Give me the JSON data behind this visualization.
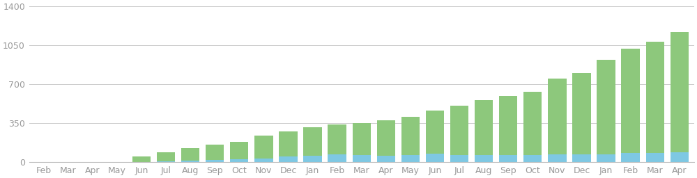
{
  "categories": [
    "Feb",
    "Mar",
    "Apr",
    "May",
    "Jun",
    "Jul",
    "Aug",
    "Sep",
    "Oct",
    "Nov",
    "Dec",
    "Jan",
    "Feb",
    "Mar",
    "Apr",
    "May",
    "Jun",
    "Jul",
    "Aug",
    "Sep",
    "Oct",
    "Nov",
    "Dec",
    "Jan",
    "Feb",
    "Mar",
    "Apr"
  ],
  "green_values": [
    1,
    1,
    2,
    3,
    48,
    82,
    110,
    140,
    160,
    205,
    225,
    255,
    270,
    285,
    315,
    345,
    390,
    445,
    490,
    530,
    570,
    680,
    730,
    850,
    940,
    1000,
    1080
  ],
  "blue_values": [
    0,
    0,
    0,
    0,
    4,
    10,
    15,
    20,
    25,
    35,
    50,
    60,
    70,
    65,
    60,
    65,
    75,
    65,
    65,
    65,
    65,
    70,
    70,
    70,
    80,
    80,
    90
  ],
  "green_color": "#8dc87c",
  "blue_color": "#7ec8e3",
  "background_color": "#ffffff",
  "grid_color": "#cccccc",
  "yticks": [
    0,
    350,
    700,
    1050,
    1400
  ],
  "ylim": [
    0,
    1400
  ],
  "label_color": "#999999",
  "bar_width": 0.75
}
